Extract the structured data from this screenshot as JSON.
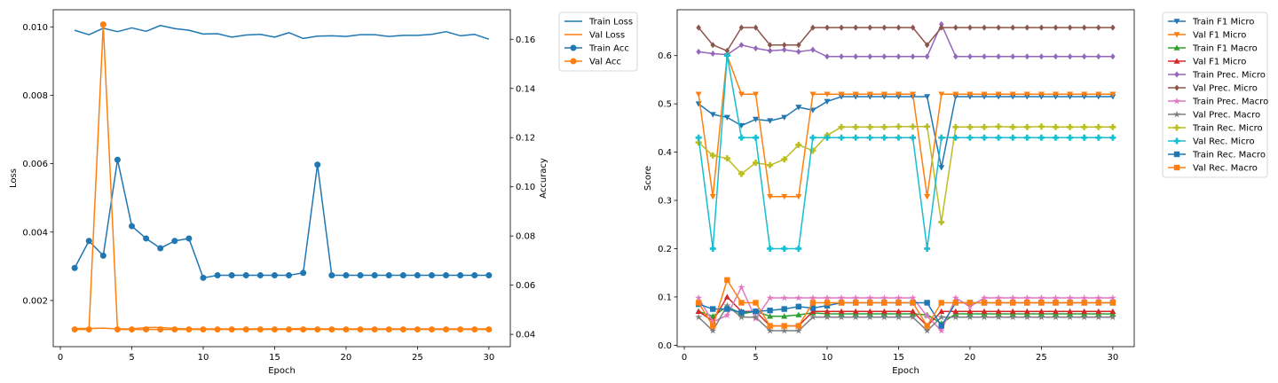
{
  "chart_data": [
    {
      "type": "line",
      "xlabel": "Epoch",
      "ylabel": "Loss",
      "ylabel_right": "Accuracy",
      "xlim": [
        -0.5,
        31.5
      ],
      "ylim": [
        0.00065,
        0.0105
      ],
      "ylim_right": [
        0.035,
        0.172
      ],
      "xticks": [
        0,
        5,
        10,
        15,
        20,
        25,
        30
      ],
      "yticks": [
        0.002,
        0.004,
        0.006,
        0.008,
        0.01
      ],
      "ytick_labels": [
        "0.002",
        "0.004",
        "0.006",
        "0.008",
        "0.010"
      ],
      "yticks_right": [
        0.04,
        0.06,
        0.08,
        0.1,
        0.12,
        0.14,
        0.16
      ],
      "ytick_labels_right": [
        "0.04",
        "0.06",
        "0.08",
        "0.10",
        "0.12",
        "0.14",
        "0.16"
      ],
      "x": [
        1,
        2,
        3,
        4,
        5,
        6,
        7,
        8,
        9,
        10,
        11,
        12,
        13,
        14,
        15,
        16,
        17,
        18,
        19,
        20,
        21,
        22,
        23,
        24,
        25,
        26,
        27,
        28,
        29,
        30
      ],
      "legend_position": "outside upper right",
      "series": [
        {
          "name": "Train Loss",
          "axis": "left",
          "color": "#1f77b4",
          "marker": "none",
          "values": [
            0.0099,
            0.00977,
            0.00996,
            0.00986,
            0.00997,
            0.00987,
            0.01004,
            0.00995,
            0.0099,
            0.00979,
            0.0098,
            0.0097,
            0.00976,
            0.00978,
            0.0097,
            0.00983,
            0.00966,
            0.00973,
            0.00974,
            0.00972,
            0.00977,
            0.00977,
            0.00972,
            0.00975,
            0.00975,
            0.00978,
            0.00986,
            0.00974,
            0.00978,
            0.00964
          ]
        },
        {
          "name": "Val Loss",
          "axis": "left",
          "color": "#ff7f0e",
          "marker": "none",
          "values": [
            0.00118,
            0.00118,
            0.00119,
            0.00117,
            0.00117,
            0.00121,
            0.00121,
            0.00118,
            0.00117,
            0.00117,
            0.00117,
            0.00117,
            0.00117,
            0.00117,
            0.00117,
            0.00117,
            0.00118,
            0.00117,
            0.00117,
            0.00117,
            0.00117,
            0.00117,
            0.00117,
            0.00117,
            0.00117,
            0.00117,
            0.00117,
            0.00117,
            0.00117,
            0.00117
          ]
        },
        {
          "name": "Train Acc",
          "axis": "right",
          "color": "#1f77b4",
          "marker": "circle",
          "values": [
            0.067,
            0.078,
            0.072,
            0.111,
            0.084,
            0.079,
            0.075,
            0.078,
            0.079,
            0.063,
            0.064,
            0.064,
            0.064,
            0.064,
            0.064,
            0.064,
            0.065,
            0.109,
            0.064,
            0.064,
            0.064,
            0.064,
            0.064,
            0.064,
            0.064,
            0.064,
            0.064,
            0.064,
            0.064,
            0.064
          ]
        },
        {
          "name": "Val Acc",
          "axis": "right",
          "color": "#ff7f0e",
          "marker": "circle",
          "values": [
            0.042,
            0.042,
            0.166,
            0.042,
            0.042,
            0.042,
            0.042,
            0.042,
            0.042,
            0.042,
            0.042,
            0.042,
            0.042,
            0.042,
            0.042,
            0.042,
            0.042,
            0.042,
            0.042,
            0.042,
            0.042,
            0.042,
            0.042,
            0.042,
            0.042,
            0.042,
            0.042,
            0.042,
            0.042,
            0.042
          ]
        }
      ]
    },
    {
      "type": "line",
      "xlabel": "Epoch",
      "ylabel": "Score",
      "xlim": [
        -0.5,
        31.5
      ],
      "ylim": [
        -0.003,
        0.695
      ],
      "xticks": [
        0,
        5,
        10,
        15,
        20,
        25,
        30
      ],
      "yticks": [
        0.0,
        0.1,
        0.2,
        0.3,
        0.4,
        0.5,
        0.6
      ],
      "ytick_labels": [
        "0.0",
        "0.1",
        "0.2",
        "0.3",
        "0.4",
        "0.5",
        "0.6"
      ],
      "x": [
        1,
        2,
        3,
        4,
        5,
        6,
        7,
        8,
        9,
        10,
        11,
        12,
        13,
        14,
        15,
        16,
        17,
        18,
        19,
        20,
        21,
        22,
        23,
        24,
        25,
        26,
        27,
        28,
        29,
        30
      ],
      "legend_position": "outside upper right",
      "series": [
        {
          "name": "Train F1 Micro",
          "color": "#1f77b4",
          "marker": "triangle_down",
          "values": [
            0.5,
            0.478,
            0.472,
            0.455,
            0.468,
            0.465,
            0.472,
            0.493,
            0.487,
            0.505,
            0.515,
            0.515,
            0.515,
            0.515,
            0.515,
            0.515,
            0.515,
            0.368,
            0.515,
            0.515,
            0.515,
            0.515,
            0.515,
            0.515,
            0.515,
            0.515,
            0.515,
            0.515,
            0.515,
            0.515
          ]
        },
        {
          "name": "Val F1 Micro",
          "color": "#ff7f0e",
          "marker": "triangle_down",
          "values": [
            0.52,
            0.308,
            0.6,
            0.52,
            0.52,
            0.308,
            0.308,
            0.308,
            0.52,
            0.52,
            0.52,
            0.52,
            0.52,
            0.52,
            0.52,
            0.52,
            0.308,
            0.52,
            0.52,
            0.52,
            0.52,
            0.52,
            0.52,
            0.52,
            0.52,
            0.52,
            0.52,
            0.52,
            0.52,
            0.52
          ]
        },
        {
          "name": "Train F1 Macro",
          "color": "#2ca02c",
          "marker": "triangle_up",
          "values": [
            0.07,
            0.06,
            0.08,
            0.065,
            0.07,
            0.06,
            0.06,
            0.063,
            0.067,
            0.065,
            0.065,
            0.065,
            0.065,
            0.065,
            0.065,
            0.065,
            0.063,
            0.045,
            0.065,
            0.065,
            0.065,
            0.065,
            0.065,
            0.065,
            0.065,
            0.065,
            0.065,
            0.065,
            0.065,
            0.065
          ]
        },
        {
          "name": "Val F1 Micro",
          "color": "#d62728",
          "marker": "triangle_up",
          "values": [
            0.07,
            0.05,
            0.1,
            0.07,
            0.07,
            0.04,
            0.04,
            0.04,
            0.07,
            0.07,
            0.07,
            0.07,
            0.07,
            0.07,
            0.07,
            0.07,
            0.04,
            0.07,
            0.07,
            0.07,
            0.07,
            0.07,
            0.07,
            0.07,
            0.07,
            0.07,
            0.07,
            0.07,
            0.07,
            0.07
          ]
        },
        {
          "name": "Train Prec. Micro",
          "color": "#9467bd",
          "marker": "diamond",
          "values": [
            0.608,
            0.604,
            0.602,
            0.622,
            0.615,
            0.61,
            0.612,
            0.608,
            0.612,
            0.598,
            0.598,
            0.598,
            0.598,
            0.598,
            0.598,
            0.598,
            0.598,
            0.665,
            0.598,
            0.598,
            0.598,
            0.598,
            0.598,
            0.598,
            0.598,
            0.598,
            0.598,
            0.598,
            0.598,
            0.598
          ]
        },
        {
          "name": "Val Prec. Micro",
          "color": "#8c564b",
          "marker": "diamond",
          "values": [
            0.658,
            0.622,
            0.61,
            0.658,
            0.658,
            0.622,
            0.622,
            0.622,
            0.658,
            0.658,
            0.658,
            0.658,
            0.658,
            0.658,
            0.658,
            0.658,
            0.622,
            0.658,
            0.658,
            0.658,
            0.658,
            0.658,
            0.658,
            0.658,
            0.658,
            0.658,
            0.658,
            0.658,
            0.658,
            0.658
          ]
        },
        {
          "name": "Train Prec. Macro",
          "color": "#e377c2",
          "marker": "star",
          "values": [
            0.098,
            0.048,
            0.062,
            0.12,
            0.055,
            0.098,
            0.098,
            0.098,
            0.098,
            0.098,
            0.098,
            0.098,
            0.098,
            0.098,
            0.098,
            0.098,
            0.06,
            0.03,
            0.098,
            0.08,
            0.098,
            0.098,
            0.098,
            0.098,
            0.098,
            0.098,
            0.098,
            0.098,
            0.098,
            0.098
          ]
        },
        {
          "name": "Val Prec. Macro",
          "color": "#7f7f7f",
          "marker": "star",
          "values": [
            0.058,
            0.03,
            0.082,
            0.058,
            0.058,
            0.03,
            0.03,
            0.03,
            0.058,
            0.058,
            0.058,
            0.058,
            0.058,
            0.058,
            0.058,
            0.058,
            0.03,
            0.058,
            0.058,
            0.058,
            0.058,
            0.058,
            0.058,
            0.058,
            0.058,
            0.058,
            0.058,
            0.058,
            0.058,
            0.058
          ]
        },
        {
          "name": "Train Rec. Micro",
          "color": "#bcbd22",
          "marker": "plus",
          "values": [
            0.42,
            0.393,
            0.387,
            0.355,
            0.378,
            0.373,
            0.385,
            0.415,
            0.403,
            0.435,
            0.452,
            0.452,
            0.452,
            0.452,
            0.453,
            0.453,
            0.453,
            0.255,
            0.452,
            0.452,
            0.452,
            0.453,
            0.452,
            0.452,
            0.453,
            0.452,
            0.452,
            0.452,
            0.452,
            0.452
          ]
        },
        {
          "name": "Val Rec. Micro",
          "color": "#17becf",
          "marker": "plus",
          "values": [
            0.43,
            0.2,
            0.6,
            0.43,
            0.43,
            0.2,
            0.2,
            0.2,
            0.43,
            0.43,
            0.43,
            0.43,
            0.43,
            0.43,
            0.43,
            0.43,
            0.2,
            0.43,
            0.43,
            0.43,
            0.43,
            0.43,
            0.43,
            0.43,
            0.43,
            0.43,
            0.43,
            0.43,
            0.43,
            0.43
          ]
        },
        {
          "name": "Train Rec. Macro",
          "color": "#1f77b4",
          "marker": "square",
          "values": [
            0.085,
            0.075,
            0.075,
            0.068,
            0.07,
            0.072,
            0.075,
            0.08,
            0.077,
            0.082,
            0.088,
            0.088,
            0.088,
            0.088,
            0.088,
            0.088,
            0.088,
            0.04,
            0.088,
            0.088,
            0.088,
            0.088,
            0.088,
            0.088,
            0.088,
            0.088,
            0.088,
            0.088,
            0.088,
            0.088
          ]
        },
        {
          "name": "Val Rec. Macro",
          "color": "#ff7f0e",
          "marker": "square",
          "values": [
            0.088,
            0.04,
            0.135,
            0.088,
            0.088,
            0.04,
            0.04,
            0.04,
            0.088,
            0.088,
            0.088,
            0.088,
            0.088,
            0.088,
            0.088,
            0.088,
            0.04,
            0.088,
            0.088,
            0.088,
            0.088,
            0.088,
            0.088,
            0.088,
            0.088,
            0.088,
            0.088,
            0.088,
            0.088,
            0.088
          ]
        }
      ]
    }
  ]
}
